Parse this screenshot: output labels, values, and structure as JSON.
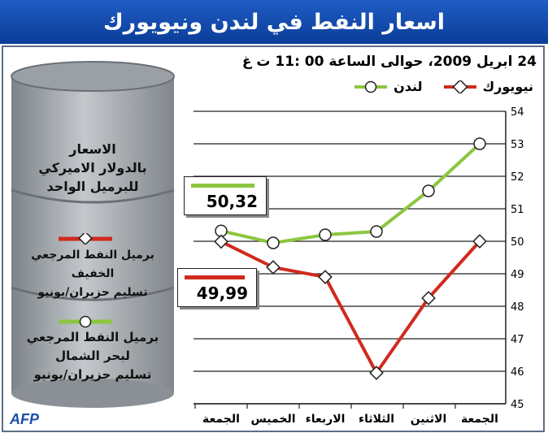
{
  "title": "اسعار النفط في لندن ونيويورك",
  "subtitle": "24 ابريل 2009، حوالى الساعة 00 :11 ت غ",
  "legend": {
    "london": "لندن",
    "newyork": "نيويورك"
  },
  "barrel": {
    "units_line1": "الاسعار",
    "units_line2": "بالدولار الاميركي",
    "units_line3": "للبرميل الواحد",
    "wti_line1": "برميل النفط المرجعي الخفيف",
    "wti_line2": "تسليم حزيران/يونيو",
    "brent_line1": "برميل النفط المرجعي",
    "brent_line2": "لبحر الشمال",
    "brent_line3": "تسليم حزيران/يونيو"
  },
  "callouts": {
    "london_value": "50,32",
    "newyork_value": "49,99"
  },
  "logo": "AFP",
  "colors": {
    "london": "#8cc63f",
    "newyork": "#d02a1e",
    "title_bg": "#154aa8",
    "barrel": "#9aa0a6"
  },
  "chart_data": {
    "type": "line",
    "categories": [
      "الجمعة",
      "الخميس",
      "الاربعاء",
      "الثلاثاء",
      "الاثنين",
      "الجمعة"
    ],
    "series": [
      {
        "name": "لندن",
        "values": [
          50.32,
          49.95,
          50.2,
          50.3,
          51.55,
          53.0
        ]
      },
      {
        "name": "نيويورك",
        "values": [
          49.99,
          49.2,
          48.9,
          45.95,
          48.25,
          50.0
        ]
      }
    ],
    "ylim": [
      45,
      54
    ],
    "yticks": [
      45,
      46,
      47,
      48,
      49,
      50,
      51,
      52,
      53,
      54
    ],
    "y_axis_side": "right",
    "grid": true
  }
}
